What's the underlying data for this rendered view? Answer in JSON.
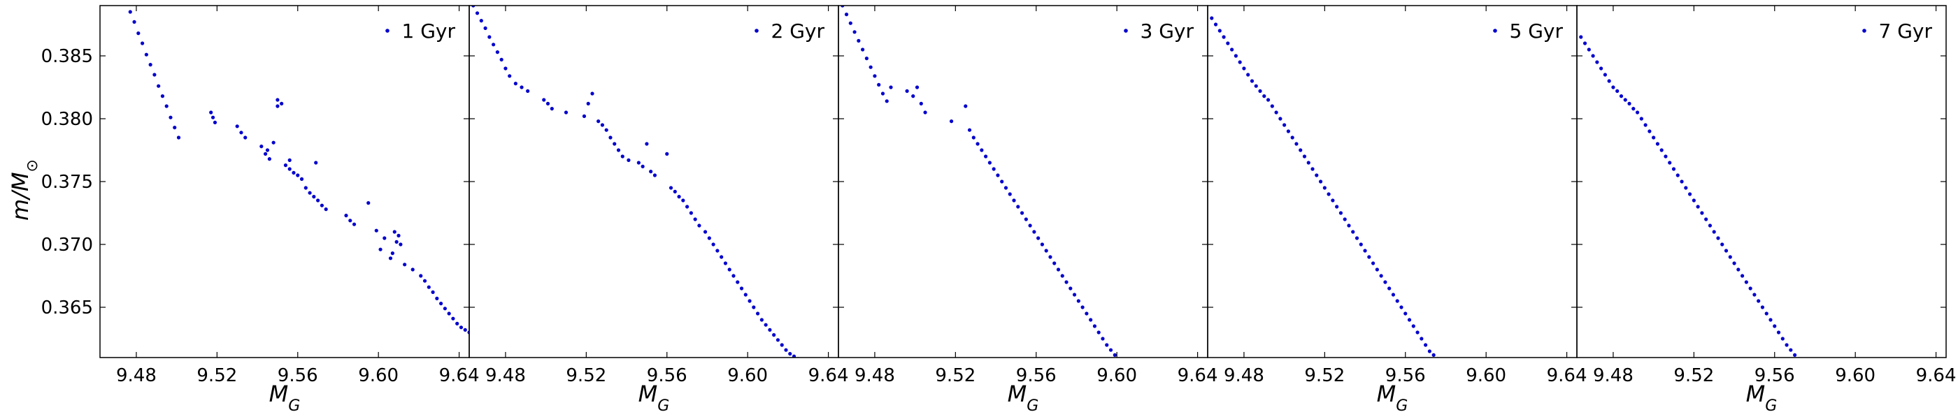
{
  "chart_data": {
    "type": "scatter",
    "shared_y": true,
    "ylabel": "m/M",
    "ylabel_subscript": "⊙",
    "xlabel": "M",
    "xlabel_subscript": "G",
    "xlim": [
      9.462,
      9.645
    ],
    "ylim": [
      0.361,
      0.389
    ],
    "xticks": [
      9.48,
      9.52,
      9.56,
      9.6,
      9.64
    ],
    "xtick_labels": [
      "9.48",
      "9.52",
      "9.56",
      "9.60",
      "9.64"
    ],
    "yticks": [
      0.365,
      0.37,
      0.375,
      0.38,
      0.385
    ],
    "ytick_labels": [
      "0.365",
      "0.370",
      "0.375",
      "0.380",
      "0.385"
    ],
    "marker_color": "#0000cc",
    "grid": false,
    "legend_position": "top-right",
    "panels": [
      {
        "legend": "1 Gyr",
        "x": [
          9.477,
          9.479,
          9.481,
          9.483,
          9.485,
          9.487,
          9.489,
          9.491,
          9.493,
          9.495,
          9.497,
          9.499,
          9.501,
          9.517,
          9.518,
          9.519,
          9.53,
          9.532,
          9.534,
          9.542,
          9.544,
          9.546,
          9.548,
          9.545,
          9.55,
          9.552,
          9.554,
          9.556,
          9.558,
          9.56,
          9.562,
          9.55,
          9.556,
          9.564,
          9.566,
          9.568,
          9.57,
          9.569,
          9.572,
          9.574,
          9.584,
          9.586,
          9.588,
          9.595,
          9.599,
          9.601,
          9.603,
          9.606,
          9.607,
          9.608,
          9.609,
          9.61,
          9.611,
          9.613,
          9.617,
          9.621,
          9.623,
          9.625,
          9.627,
          9.629,
          9.631,
          9.633,
          9.635,
          9.637,
          9.639,
          9.641,
          9.643,
          9.645
        ],
        "y": [
          0.3885,
          0.3877,
          0.3868,
          0.386,
          0.3851,
          0.3843,
          0.3835,
          0.3826,
          0.3818,
          0.381,
          0.3801,
          0.3793,
          0.3785,
          0.3805,
          0.3801,
          0.3797,
          0.3794,
          0.3789,
          0.3785,
          0.3778,
          0.3772,
          0.3768,
          0.3781,
          0.3775,
          0.3815,
          0.3812,
          0.3763,
          0.376,
          0.3757,
          0.3755,
          0.3752,
          0.381,
          0.3767,
          0.3745,
          0.3741,
          0.3738,
          0.3735,
          0.3765,
          0.3731,
          0.3728,
          0.3723,
          0.3719,
          0.3716,
          0.3733,
          0.3711,
          0.3696,
          0.3705,
          0.3689,
          0.3693,
          0.371,
          0.3702,
          0.3707,
          0.37,
          0.3684,
          0.368,
          0.3675,
          0.3671,
          0.3666,
          0.3662,
          0.3657,
          0.3653,
          0.3649,
          0.3645,
          0.3641,
          0.3637,
          0.3634,
          0.3632,
          0.363
        ]
      },
      {
        "legend": "2 Gyr",
        "x": [
          9.464,
          9.466,
          9.468,
          9.47,
          9.472,
          9.474,
          9.476,
          9.478,
          9.48,
          9.482,
          9.485,
          9.488,
          9.491,
          9.499,
          9.501,
          9.503,
          9.51,
          9.519,
          9.521,
          9.523,
          9.526,
          9.528,
          9.53,
          9.532,
          9.534,
          9.536,
          9.538,
          9.541,
          9.546,
          9.548,
          9.55,
          9.552,
          9.554,
          9.56,
          9.562,
          9.564,
          9.566,
          9.568,
          9.57,
          9.572,
          9.574,
          9.576,
          9.579,
          9.581,
          9.583,
          9.585,
          9.587,
          9.589,
          9.591,
          9.593,
          9.595,
          9.597,
          9.599,
          9.601,
          9.603,
          9.605,
          9.607,
          9.609,
          9.611,
          9.613,
          9.615,
          9.617,
          9.619,
          9.621,
          9.623,
          9.625,
          9.627,
          9.629,
          9.631,
          9.633,
          9.635,
          9.637,
          9.639
        ],
        "y": [
          0.389,
          0.3884,
          0.3878,
          0.3872,
          0.3865,
          0.3859,
          0.3853,
          0.3847,
          0.384,
          0.3834,
          0.3828,
          0.3825,
          0.3822,
          0.3815,
          0.3812,
          0.3808,
          0.3805,
          0.3802,
          0.3812,
          0.382,
          0.3798,
          0.3795,
          0.3791,
          0.3785,
          0.378,
          0.3775,
          0.377,
          0.3767,
          0.3765,
          0.3762,
          0.378,
          0.3758,
          0.3755,
          0.3772,
          0.3745,
          0.3742,
          0.3738,
          0.3735,
          0.373,
          0.3725,
          0.372,
          0.3715,
          0.371,
          0.3705,
          0.37,
          0.3695,
          0.369,
          0.3685,
          0.368,
          0.3675,
          0.367,
          0.3665,
          0.366,
          0.3655,
          0.365,
          0.3645,
          0.364,
          0.3636,
          0.3632,
          0.3628,
          0.3624,
          0.362,
          0.3616,
          0.3613,
          0.3611,
          0.3609,
          0.3608,
          0.3607,
          0.3606,
          0.3606,
          0.3605,
          0.3605,
          0.3605
        ]
      },
      {
        "legend": "3 Gyr",
        "x": [
          9.464,
          9.466,
          9.468,
          9.47,
          9.472,
          9.474,
          9.476,
          9.478,
          9.48,
          9.482,
          9.484,
          9.486,
          9.488,
          9.496,
          9.499,
          9.501,
          9.503,
          9.505,
          9.518,
          9.525,
          9.527,
          9.529,
          9.531,
          9.533,
          9.535,
          9.537,
          9.539,
          9.541,
          9.543,
          9.545,
          9.547,
          9.549,
          9.551,
          9.553,
          9.555,
          9.557,
          9.559,
          9.561,
          9.563,
          9.565,
          9.567,
          9.569,
          9.571,
          9.573,
          9.575,
          9.577,
          9.579,
          9.581,
          9.583,
          9.585,
          9.587,
          9.589,
          9.591,
          9.593,
          9.595,
          9.597,
          9.599,
          9.601,
          9.603,
          9.605,
          9.607,
          9.609,
          9.611,
          9.613,
          9.615
        ],
        "y": [
          0.389,
          0.3883,
          0.3876,
          0.3869,
          0.3862,
          0.3855,
          0.3848,
          0.3841,
          0.3834,
          0.3827,
          0.382,
          0.3814,
          0.3825,
          0.3822,
          0.3818,
          0.3825,
          0.3812,
          0.3805,
          0.3798,
          0.381,
          0.3791,
          0.3785,
          0.378,
          0.3775,
          0.377,
          0.3765,
          0.376,
          0.3755,
          0.375,
          0.3745,
          0.374,
          0.3735,
          0.373,
          0.3725,
          0.372,
          0.3715,
          0.371,
          0.3705,
          0.37,
          0.3695,
          0.369,
          0.3685,
          0.368,
          0.3675,
          0.367,
          0.3665,
          0.366,
          0.3655,
          0.365,
          0.3645,
          0.364,
          0.3635,
          0.363,
          0.3625,
          0.362,
          0.3616,
          0.3612,
          0.3609,
          0.3606,
          0.3603,
          0.3601,
          0.3599,
          0.3597,
          0.3596,
          0.3595
        ]
      },
      {
        "legend": "5 Gyr",
        "x": [
          9.464,
          9.466,
          9.468,
          9.47,
          9.472,
          9.474,
          9.476,
          9.478,
          9.48,
          9.482,
          9.484,
          9.486,
          9.488,
          9.49,
          9.492,
          9.494,
          9.496,
          9.498,
          9.5,
          9.502,
          9.504,
          9.506,
          9.508,
          9.51,
          9.512,
          9.514,
          9.516,
          9.518,
          9.52,
          9.522,
          9.524,
          9.526,
          9.528,
          9.53,
          9.532,
          9.534,
          9.536,
          9.538,
          9.54,
          9.542,
          9.544,
          9.546,
          9.548,
          9.55,
          9.552,
          9.554,
          9.556,
          9.558,
          9.56,
          9.562,
          9.564,
          9.566,
          9.568,
          9.57,
          9.572,
          9.574,
          9.576,
          9.578,
          9.58,
          9.582,
          9.584,
          9.586,
          9.588,
          9.59,
          9.592,
          9.594
        ],
        "y": [
          0.388,
          0.3875,
          0.387,
          0.3865,
          0.386,
          0.3855,
          0.385,
          0.3845,
          0.384,
          0.3835,
          0.383,
          0.3826,
          0.3822,
          0.3818,
          0.3815,
          0.381,
          0.3805,
          0.38,
          0.3795,
          0.379,
          0.3785,
          0.378,
          0.3775,
          0.377,
          0.3765,
          0.376,
          0.3755,
          0.375,
          0.3745,
          0.374,
          0.3735,
          0.373,
          0.3725,
          0.372,
          0.3715,
          0.371,
          0.3705,
          0.37,
          0.3695,
          0.369,
          0.3685,
          0.368,
          0.3675,
          0.367,
          0.3665,
          0.366,
          0.3655,
          0.365,
          0.3645,
          0.364,
          0.3635,
          0.363,
          0.3625,
          0.362,
          0.3615,
          0.3612,
          0.3609,
          0.3606,
          0.3603,
          0.36,
          0.3598,
          0.3596,
          0.3594,
          0.3593,
          0.3592,
          0.3591
        ]
      },
      {
        "legend": "7 Gyr",
        "x": [
          9.464,
          9.466,
          9.468,
          9.47,
          9.472,
          9.474,
          9.476,
          9.478,
          9.48,
          9.482,
          9.484,
          9.486,
          9.488,
          9.49,
          9.492,
          9.494,
          9.496,
          9.498,
          9.5,
          9.502,
          9.504,
          9.506,
          9.508,
          9.51,
          9.512,
          9.514,
          9.516,
          9.518,
          9.52,
          9.522,
          9.524,
          9.526,
          9.528,
          9.53,
          9.532,
          9.534,
          9.536,
          9.538,
          9.54,
          9.542,
          9.544,
          9.546,
          9.548,
          9.55,
          9.552,
          9.554,
          9.556,
          9.558,
          9.56,
          9.562,
          9.564,
          9.566,
          9.568,
          9.57,
          9.572,
          9.574,
          9.576,
          9.578,
          9.58,
          9.582,
          9.584
        ],
        "y": [
          0.3865,
          0.386,
          0.3855,
          0.385,
          0.3845,
          0.384,
          0.3835,
          0.383,
          0.3825,
          0.3822,
          0.3818,
          0.3815,
          0.3812,
          0.3808,
          0.3805,
          0.38,
          0.3795,
          0.379,
          0.3785,
          0.378,
          0.3775,
          0.377,
          0.3765,
          0.376,
          0.3755,
          0.375,
          0.3745,
          0.374,
          0.3735,
          0.373,
          0.3725,
          0.372,
          0.3715,
          0.371,
          0.3705,
          0.37,
          0.3695,
          0.369,
          0.3685,
          0.368,
          0.3675,
          0.367,
          0.3665,
          0.366,
          0.3655,
          0.365,
          0.3645,
          0.364,
          0.3635,
          0.363,
          0.3625,
          0.362,
          0.3616,
          0.3612,
          0.3609,
          0.3606,
          0.3603,
          0.36,
          0.3598,
          0.3596,
          0.3594
        ]
      }
    ]
  }
}
